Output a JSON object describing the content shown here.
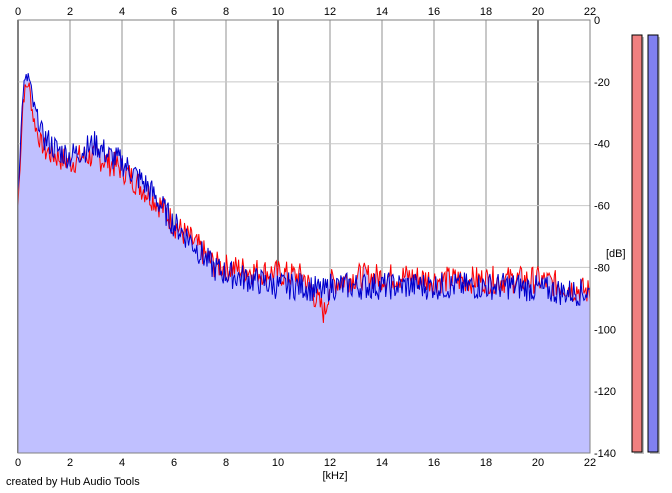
{
  "credit": "created by Hub Audio Tools",
  "colors": {
    "background": "#ffffff",
    "plot_area": "#ffffff",
    "fill_area": "#c0c0ff",
    "grid_minor": "#c8c8c8",
    "grid_major": "#808080",
    "left_channel": "#ff0000",
    "right_channel": "#0000cc",
    "meter_left": "#f08080",
    "meter_right": "#8080f0"
  },
  "meters": [
    {
      "name": "left",
      "level_db": 0
    },
    {
      "name": "right",
      "level_db": 0
    }
  ],
  "chart_data": {
    "type": "line",
    "title": "",
    "xlabel": "[kHz]",
    "ylabel": "[dB]",
    "xlim": [
      0,
      22
    ],
    "ylim": [
      -140,
      0
    ],
    "x_ticks": [
      "0",
      "2",
      "4",
      "6",
      "8",
      "10",
      "12",
      "14",
      "16",
      "18",
      "20",
      "22"
    ],
    "y_ticks": [
      "0",
      "-20",
      "-40",
      "-60",
      "-80",
      "-100",
      "-120",
      "-140"
    ],
    "grid": true,
    "legend": "none",
    "x": [
      0.0,
      0.2,
      0.4,
      0.6,
      0.8,
      1.0,
      1.5,
      2.0,
      2.5,
      3.0,
      3.5,
      4.0,
      4.5,
      5.0,
      5.5,
      6.0,
      6.5,
      7.0,
      7.5,
      8.0,
      9.0,
      10.0,
      11.0,
      11.8,
      12.0,
      13.0,
      14.0,
      15.0,
      16.0,
      17.0,
      18.0,
      19.0,
      20.0,
      21.0,
      22.0
    ],
    "series": [
      {
        "name": "",
        "channel": "left",
        "color": "#ff0000",
        "values": [
          -60,
          -25,
          -20,
          -32,
          -38,
          -42,
          -44,
          -46,
          -44,
          -44,
          -46,
          -48,
          -52,
          -56,
          -60,
          -66,
          -70,
          -74,
          -79,
          -80,
          -81,
          -82,
          -83,
          -95,
          -85,
          -83,
          -83,
          -83,
          -84,
          -84,
          -84,
          -84,
          -84,
          -86,
          -88
        ]
      },
      {
        "name": "",
        "channel": "right",
        "color": "#0000cc",
        "values": [
          -55,
          -22,
          -18,
          -28,
          -33,
          -38,
          -42,
          -44,
          -42,
          -40,
          -44,
          -46,
          -50,
          -54,
          -60,
          -66,
          -70,
          -75,
          -80,
          -82,
          -84,
          -86,
          -86,
          -88,
          -86,
          -86,
          -86,
          -86,
          -86,
          -86,
          -86,
          -86,
          -87,
          -88,
          -88
        ]
      }
    ]
  }
}
